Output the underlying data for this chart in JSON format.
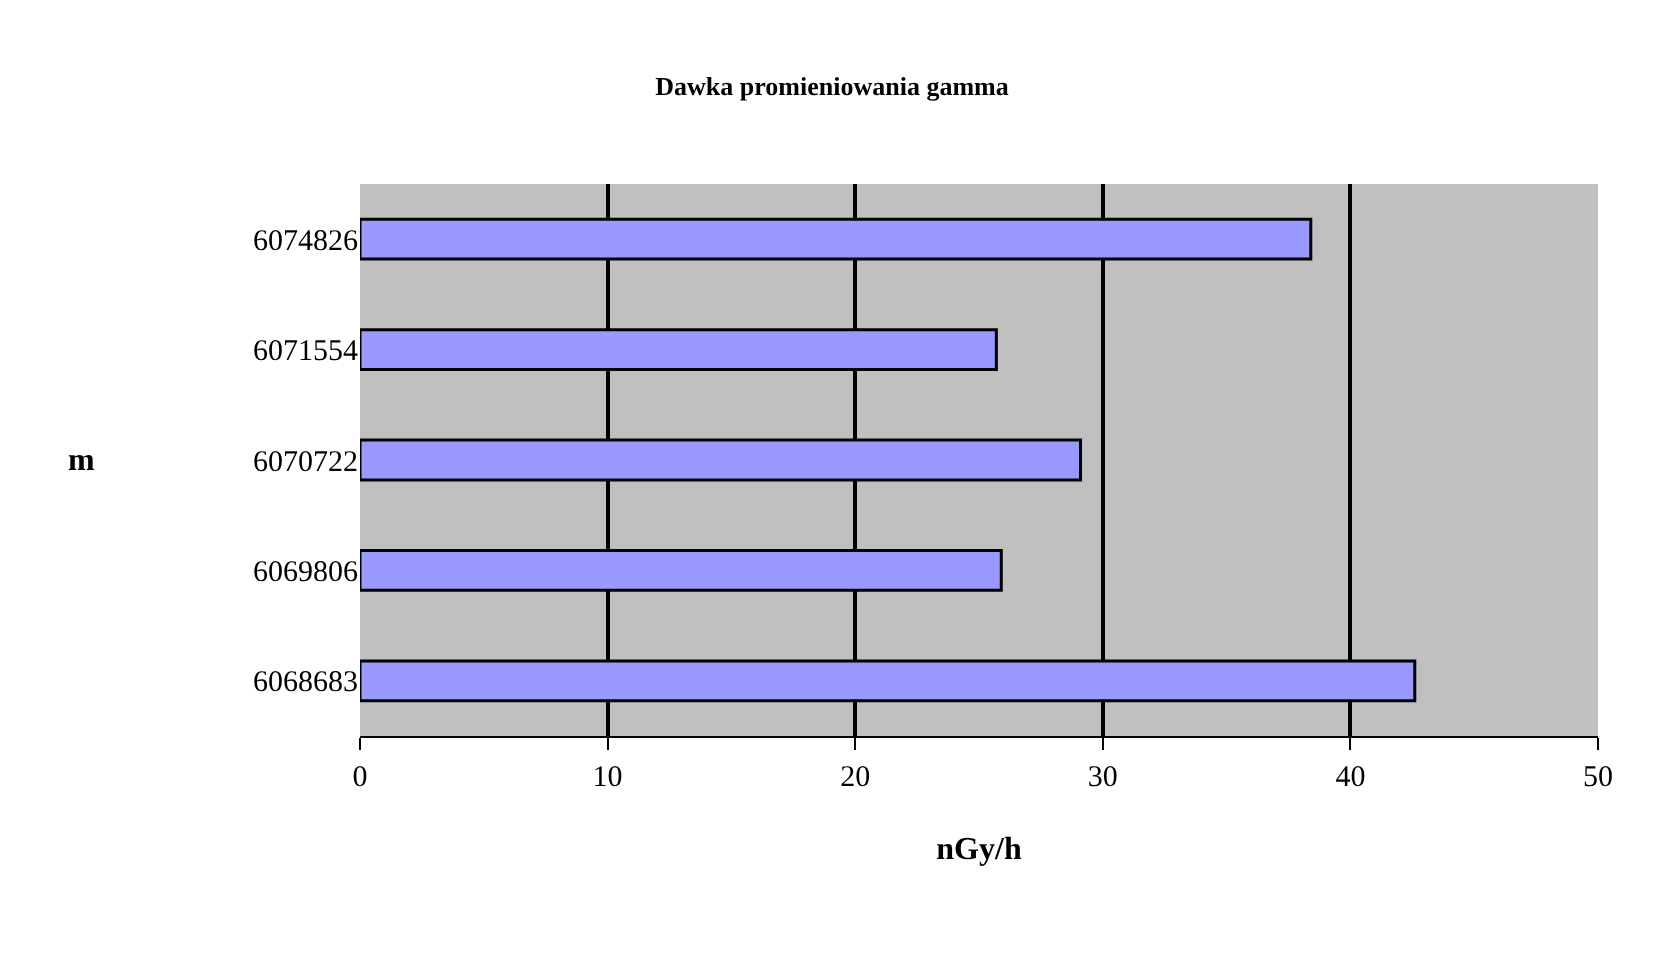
{
  "chart_data": {
    "type": "bar",
    "orientation": "horizontal",
    "title": "Dawka promieniowania gamma",
    "xlabel": "nGy/h",
    "ylabel": "m",
    "categories": [
      "6074826",
      "6071554",
      "6070722",
      "6069806",
      "6068683"
    ],
    "values": [
      38.4,
      25.7,
      29.1,
      25.9,
      42.6
    ],
    "color": "#9999ff",
    "xlim": [
      0,
      50
    ],
    "xticks": [
      0,
      10,
      20,
      30,
      40,
      50
    ],
    "grid": "x",
    "legend": false
  }
}
